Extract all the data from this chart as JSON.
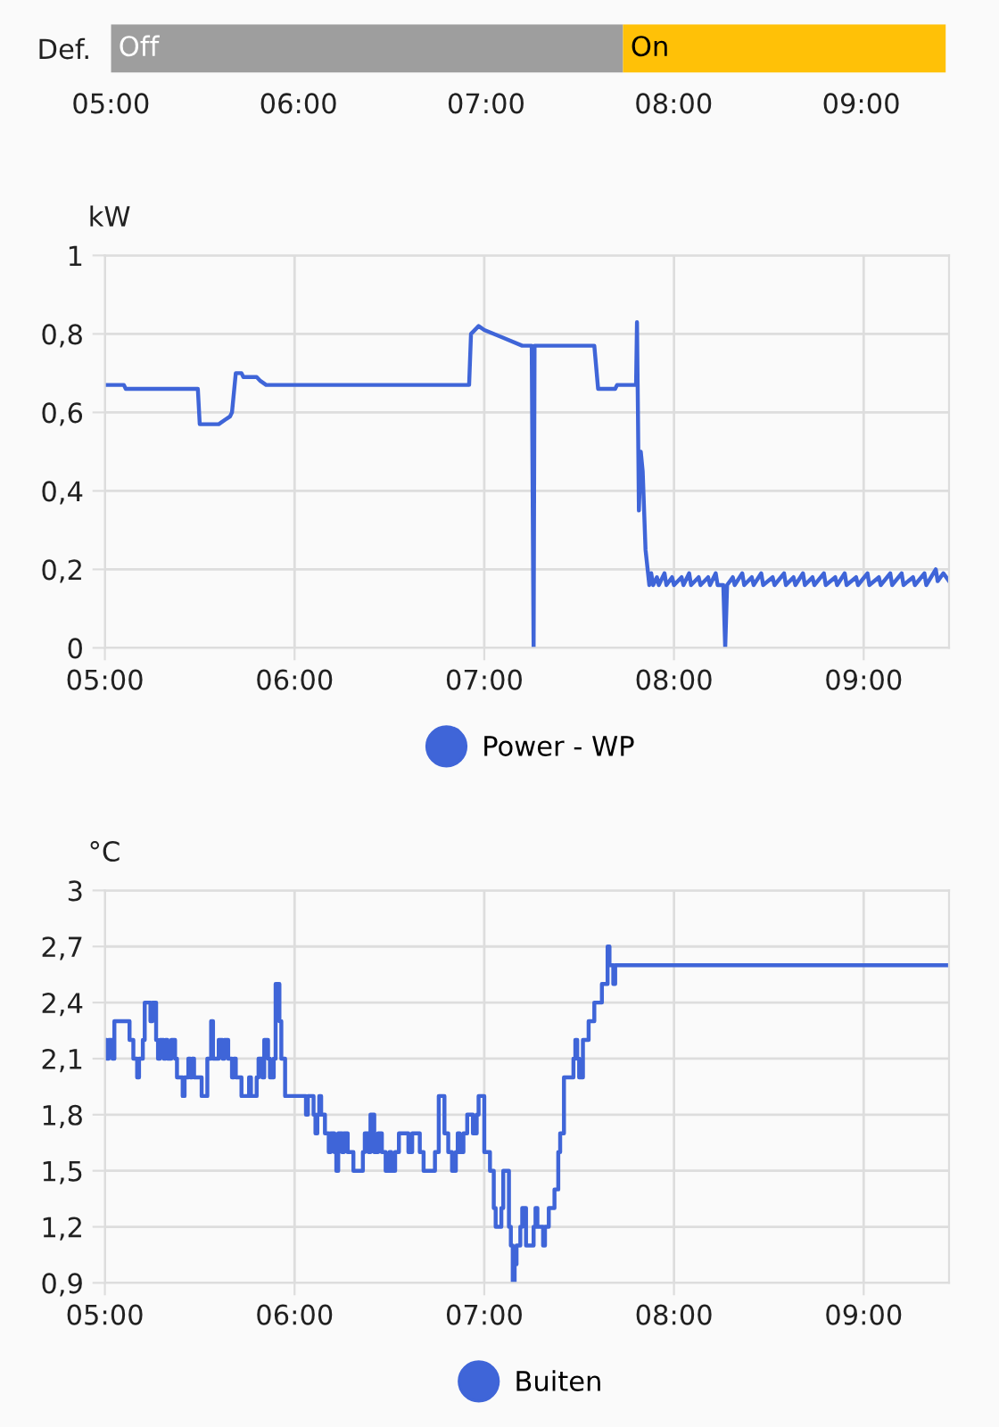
{
  "chart_data": [
    {
      "type": "bar",
      "orientation": "horizontal",
      "categories": [
        "Def."
      ],
      "series": [
        {
          "name": "Off",
          "color": "#9e9e9e",
          "base": [
            5
          ],
          "values": [
            2.73
          ]
        },
        {
          "name": "On",
          "color": "#ffc107",
          "base": [
            7.73
          ],
          "values": [
            1.72
          ]
        }
      ],
      "xlim": [
        5,
        9.46
      ],
      "xticks": [
        {
          "value": 5,
          "label": "05:00"
        },
        {
          "value": 6,
          "label": "06:00"
        },
        {
          "value": 7,
          "label": "07:00"
        },
        {
          "value": 8,
          "label": "08:00"
        },
        {
          "value": 9,
          "label": "09:00"
        }
      ],
      "grid": false
    },
    {
      "type": "line",
      "ylabel": "kW",
      "legend": "bottom",
      "grid": true,
      "x": [
        5.0,
        5.1,
        5.11,
        5.49,
        5.5,
        5.6,
        5.66,
        5.67,
        5.69,
        5.72,
        5.73,
        5.8,
        5.82,
        5.85,
        6.92,
        6.93,
        6.97,
        7.0,
        7.1,
        7.2,
        7.25,
        7.26,
        7.265,
        7.58,
        7.6,
        7.69,
        7.7,
        7.8,
        7.805,
        7.81,
        7.815,
        7.825,
        7.835,
        7.85,
        7.87,
        7.88,
        7.89,
        7.91,
        7.92,
        7.95,
        7.96,
        7.99,
        8.0,
        8.04,
        8.05,
        8.08,
        8.09,
        8.13,
        8.14,
        8.18,
        8.19,
        8.22,
        8.23,
        8.26,
        8.27,
        8.28,
        8.31,
        8.32,
        8.36,
        8.37,
        8.41,
        8.42,
        8.46,
        8.47,
        8.52,
        8.53,
        8.58,
        8.59,
        8.63,
        8.64,
        8.68,
        8.69,
        8.73,
        8.74,
        8.79,
        8.8,
        8.85,
        8.86,
        8.9,
        8.91,
        8.96,
        8.97,
        9.02,
        9.03,
        9.08,
        9.09,
        9.14,
        9.15,
        9.2,
        9.21,
        9.26,
        9.27,
        9.32,
        9.33,
        9.38,
        9.39,
        9.42,
        9.45
      ],
      "series": [
        {
          "name": "Power - WP",
          "color": "#3f65d8",
          "values": [
            0.67,
            0.67,
            0.66,
            0.66,
            0.57,
            0.57,
            0.59,
            0.6,
            0.7,
            0.7,
            0.69,
            0.69,
            0.68,
            0.67,
            0.67,
            0.8,
            0.82,
            0.81,
            0.79,
            0.77,
            0.77,
            0,
            0.77,
            0.77,
            0.66,
            0.66,
            0.67,
            0.67,
            0.83,
            0.6,
            0.35,
            0.5,
            0.45,
            0.25,
            0.16,
            0.19,
            0.16,
            0.18,
            0.16,
            0.19,
            0.16,
            0.18,
            0.16,
            0.18,
            0.16,
            0.19,
            0.16,
            0.18,
            0.16,
            0.18,
            0.16,
            0.19,
            0.16,
            0.16,
            0,
            0.16,
            0.18,
            0.16,
            0.19,
            0.16,
            0.18,
            0.16,
            0.19,
            0.16,
            0.18,
            0.16,
            0.19,
            0.16,
            0.18,
            0.16,
            0.19,
            0.16,
            0.18,
            0.16,
            0.19,
            0.16,
            0.18,
            0.16,
            0.19,
            0.16,
            0.18,
            0.16,
            0.19,
            0.16,
            0.18,
            0.16,
            0.19,
            0.16,
            0.19,
            0.16,
            0.18,
            0.16,
            0.19,
            0.16,
            0.2,
            0.17,
            0.19,
            0.17
          ]
        }
      ],
      "xlim": [
        5,
        9.45
      ],
      "xticks": [
        {
          "value": 5,
          "label": "05:00"
        },
        {
          "value": 6,
          "label": "06:00"
        },
        {
          "value": 7,
          "label": "07:00"
        },
        {
          "value": 8,
          "label": "08:00"
        },
        {
          "value": 9,
          "label": "09:00"
        }
      ],
      "ylim": [
        0,
        1
      ],
      "yticks": [
        0,
        {
          "value": 0.2,
          "label": "0,2"
        },
        {
          "value": 0.4,
          "label": "0,4"
        },
        {
          "value": 0.6,
          "label": "0,6"
        },
        {
          "value": 0.8,
          "label": "0,8"
        },
        1
      ]
    },
    {
      "type": "step",
      "ylabel": "°C",
      "legend": "bottom",
      "grid": true,
      "x": [
        5.0,
        5.01,
        5.02,
        5.04,
        5.05,
        5.13,
        5.15,
        5.17,
        5.18,
        5.2,
        5.21,
        5.24,
        5.25,
        5.27,
        5.28,
        5.29,
        5.31,
        5.32,
        5.33,
        5.35,
        5.37,
        5.38,
        5.41,
        5.42,
        5.44,
        5.45,
        5.46,
        5.47,
        5.51,
        5.54,
        5.56,
        5.57,
        5.6,
        5.62,
        5.63,
        5.65,
        5.67,
        5.68,
        5.69,
        5.72,
        5.76,
        5.77,
        5.8,
        5.81,
        5.83,
        5.84,
        5.86,
        5.87,
        5.89,
        5.9,
        5.92,
        5.93,
        5.95,
        6.06,
        6.07,
        6.1,
        6.11,
        6.12,
        6.13,
        6.14,
        6.16,
        6.18,
        6.19,
        6.21,
        6.22,
        6.23,
        6.25,
        6.26,
        6.28,
        6.31,
        6.36,
        6.37,
        6.39,
        6.4,
        6.42,
        6.44,
        6.46,
        6.48,
        6.5,
        6.51,
        6.53,
        6.55,
        6.6,
        6.62,
        6.66,
        6.68,
        6.74,
        6.76,
        6.79,
        6.81,
        6.83,
        6.85,
        6.86,
        6.87,
        6.89,
        6.91,
        6.94,
        6.96,
        6.97,
        7.0,
        7.03,
        7.05,
        7.06,
        7.09,
        7.1,
        7.13,
        7.14,
        7.15,
        7.16,
        7.17,
        7.19,
        7.2,
        7.22,
        7.26,
        7.27,
        7.28,
        7.31,
        7.32,
        7.34,
        7.37,
        7.39,
        7.4,
        7.42,
        7.47,
        7.48,
        7.49,
        7.5,
        7.52,
        7.55,
        7.58,
        7.62,
        7.65,
        7.66,
        7.68,
        7.69,
        9.45
      ],
      "series": [
        {
          "name": "Buiten",
          "color": "#3f65d8",
          "values": [
            2.2,
            2.1,
            2.2,
            2.1,
            2.3,
            2.2,
            2.1,
            2.0,
            2.1,
            2.2,
            2.4,
            2.3,
            2.4,
            2.2,
            2.1,
            2.2,
            2.1,
            2.2,
            2.1,
            2.2,
            2.1,
            2.0,
            1.9,
            2.0,
            2.1,
            2.0,
            2.1,
            2.0,
            1.9,
            2.1,
            2.3,
            2.1,
            2.2,
            2.1,
            2.2,
            2.1,
            2.0,
            2.1,
            2.0,
            1.9,
            2.0,
            1.9,
            2.0,
            2.1,
            2.0,
            2.2,
            2.1,
            2.0,
            2.1,
            2.5,
            2.3,
            2.1,
            1.9,
            1.8,
            1.9,
            1.8,
            1.7,
            1.8,
            1.9,
            1.8,
            1.7,
            1.6,
            1.7,
            1.6,
            1.5,
            1.7,
            1.6,
            1.7,
            1.6,
            1.5,
            1.6,
            1.7,
            1.6,
            1.8,
            1.6,
            1.7,
            1.6,
            1.5,
            1.6,
            1.5,
            1.6,
            1.7,
            1.6,
            1.7,
            1.6,
            1.5,
            1.6,
            1.9,
            1.7,
            1.6,
            1.5,
            1.6,
            1.7,
            1.6,
            1.7,
            1.8,
            1.7,
            1.8,
            1.9,
            1.6,
            1.5,
            1.3,
            1.2,
            1.3,
            1.5,
            1.2,
            1.1,
            0.9,
            1.0,
            1.1,
            1.2,
            1.3,
            1.1,
            1.2,
            1.3,
            1.2,
            1.1,
            1.2,
            1.3,
            1.4,
            1.6,
            1.7,
            2.0,
            2.1,
            2.2,
            2.1,
            2.0,
            2.2,
            2.3,
            2.4,
            2.5,
            2.7,
            2.6,
            2.5,
            2.6,
            2.6
          ]
        }
      ],
      "xlim": [
        5,
        9.45
      ],
      "xticks": [
        {
          "value": 5,
          "label": "05:00"
        },
        {
          "value": 6,
          "label": "06:00"
        },
        {
          "value": 7,
          "label": "07:00"
        },
        {
          "value": 8,
          "label": "08:00"
        },
        {
          "value": 9,
          "label": "09:00"
        }
      ],
      "ylim": [
        0.9,
        3
      ],
      "yticks": [
        {
          "value": 0.9,
          "label": "0,9"
        },
        {
          "value": 1.2,
          "label": "1,2"
        },
        {
          "value": 1.5,
          "label": "1,5"
        },
        {
          "value": 1.8,
          "label": "1,8"
        },
        {
          "value": 2.1,
          "label": "2,1"
        },
        {
          "value": 2.4,
          "label": "2,4"
        },
        {
          "value": 2.7,
          "label": "2,7"
        },
        3
      ]
    }
  ]
}
